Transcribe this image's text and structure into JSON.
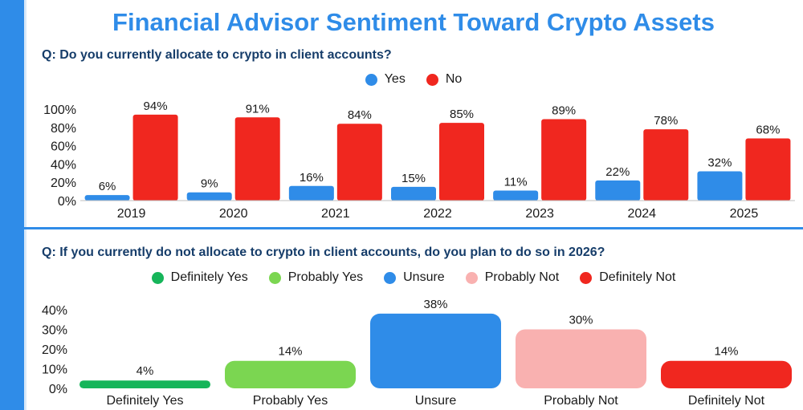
{
  "title": "Financial Advisor Sentiment Toward Crypto Assets",
  "chart_data": [
    {
      "type": "bar",
      "question": "Q: Do you currently allocate to crypto in client accounts?",
      "categories": [
        "2019",
        "2020",
        "2021",
        "2022",
        "2023",
        "2024",
        "2025"
      ],
      "series": [
        {
          "name": "Yes",
          "color": "#2f8ce8",
          "values": [
            6,
            9,
            16,
            15,
            11,
            22,
            32
          ],
          "labels": [
            "6%",
            "9%",
            "16%",
            "15%",
            "11%",
            "22%",
            "32%"
          ]
        },
        {
          "name": "No",
          "color": "#f0271f",
          "values": [
            94,
            91,
            84,
            85,
            89,
            78,
            68
          ],
          "labels": [
            "94%",
            "91%",
            "84%",
            "85%",
            "89%",
            "78%",
            "68%"
          ]
        }
      ],
      "yticks": [
        "0%",
        "20%",
        "40%",
        "60%",
        "80%",
        "100%"
      ],
      "ylim": [
        0,
        100
      ],
      "legend_position": "top-center"
    },
    {
      "type": "bar",
      "question": "Q: If you currently do not allocate to crypto in client accounts, do you plan to do so in 2026?",
      "categories": [
        "Definitely Yes",
        "Probably Yes",
        "Unsure",
        "Probably Not",
        "Definitely Not"
      ],
      "values": [
        4,
        14,
        38,
        30,
        14
      ],
      "labels": [
        "4%",
        "14%",
        "38%",
        "30%",
        "14%"
      ],
      "colors": [
        "#16b55a",
        "#7bd651",
        "#2f8ce8",
        "#f9b1b0",
        "#f0271f"
      ],
      "legend": [
        {
          "name": "Definitely Yes",
          "color": "#16b55a"
        },
        {
          "name": "Probably Yes",
          "color": "#7bd651"
        },
        {
          "name": "Unsure",
          "color": "#2f8ce8"
        },
        {
          "name": "Probably Not",
          "color": "#f9b1b0"
        },
        {
          "name": "Definitely Not",
          "color": "#f0271f"
        }
      ],
      "yticks": [
        "0%",
        "10%",
        "20%",
        "30%",
        "40%"
      ],
      "ylim": [
        0,
        40
      ],
      "legend_position": "top-center"
    }
  ]
}
